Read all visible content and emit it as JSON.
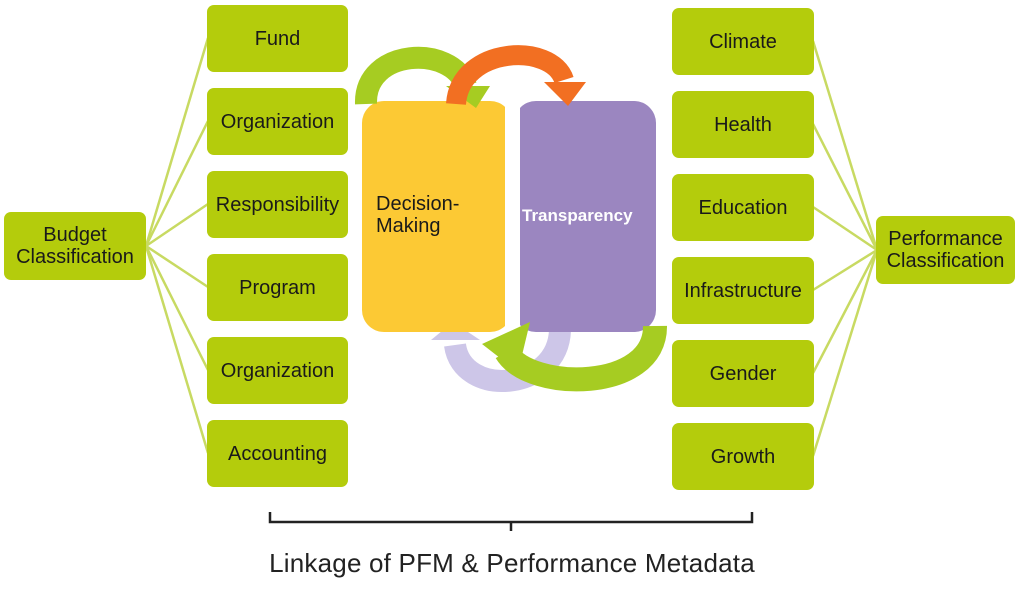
{
  "left_hub": {
    "label_line1": "Budget",
    "label_line2": "Classification"
  },
  "left_items": [
    "Fund",
    "Organization",
    "Responsibility",
    "Program",
    "Organization",
    "Accounting"
  ],
  "right_hub": {
    "label_line1": "Performance",
    "label_line2": "Classification"
  },
  "right_items": [
    "Climate",
    "Health",
    "Education",
    "Infrastructure",
    "Gender",
    "Growth"
  ],
  "center": {
    "decision_line1": "Decision-",
    "decision_line2": "Making",
    "transparency": "Transparency"
  },
  "caption": "Linkage of PFM & Performance Metadata",
  "colors": {
    "box_green": "#b4cc0c",
    "connector_green": "#c8da62",
    "decision_yellow": "#fcc934",
    "transparency_purple": "#9b86c0",
    "arrow_green": "#a6cc22",
    "arrow_orange": "#f26f22",
    "arrow_lavender": "#cdc6e8"
  }
}
